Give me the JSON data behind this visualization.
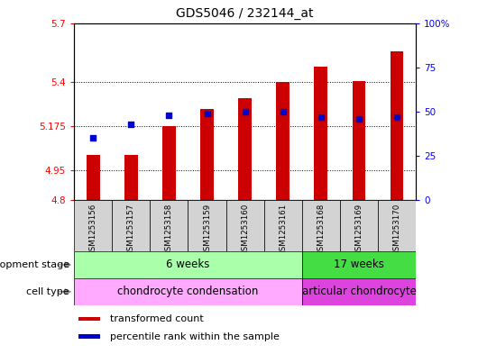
{
  "title": "GDS5046 / 232144_at",
  "samples": [
    "GSM1253156",
    "GSM1253157",
    "GSM1253158",
    "GSM1253159",
    "GSM1253160",
    "GSM1253161",
    "GSM1253168",
    "GSM1253169",
    "GSM1253170"
  ],
  "transformed_counts": [
    5.03,
    5.03,
    5.175,
    5.265,
    5.32,
    5.4,
    5.48,
    5.405,
    5.555
  ],
  "percentile_ranks": [
    35,
    43,
    48,
    49,
    50,
    50,
    47,
    46,
    47
  ],
  "ylim_left": [
    4.8,
    5.7
  ],
  "ylim_right": [
    0,
    100
  ],
  "yticks_left": [
    4.8,
    4.95,
    5.175,
    5.4,
    5.7
  ],
  "yticks_right": [
    0,
    25,
    50,
    75,
    100
  ],
  "ytick_labels_left": [
    "4.8",
    "4.95",
    "5.175",
    "5.4",
    "5.7"
  ],
  "ytick_labels_right": [
    "0",
    "25",
    "50",
    "75",
    "100%"
  ],
  "bar_color": "#cc0000",
  "dot_color": "#0000cc",
  "bar_bottom": 4.8,
  "dot_size": 18,
  "dev_spans": [
    [
      0,
      6,
      "6 weeks",
      "#aaffaa"
    ],
    [
      6,
      9,
      "17 weeks",
      "#44dd44"
    ]
  ],
  "cell_spans": [
    [
      0,
      6,
      "chondrocyte condensation",
      "#ffaaff"
    ],
    [
      6,
      9,
      "articular chondrocyte",
      "#dd44dd"
    ]
  ],
  "dev_stage_label": "development stage",
  "cell_type_label": "cell type",
  "legend_items": [
    {
      "label": "transformed count",
      "color": "#cc0000"
    },
    {
      "label": "percentile rank within the sample",
      "color": "#0000cc"
    }
  ],
  "grid_color": "black",
  "sample_box_color": "#d3d3d3",
  "bar_width": 0.35
}
